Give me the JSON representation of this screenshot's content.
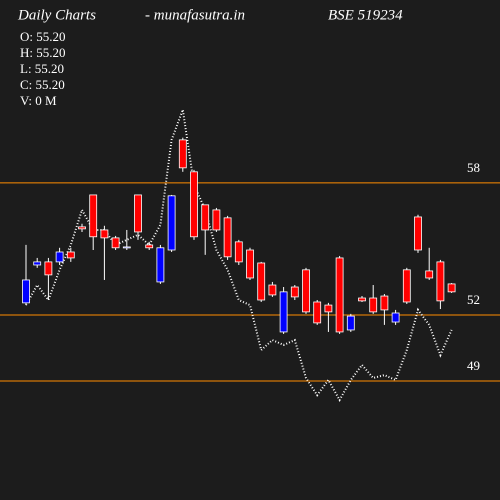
{
  "chart_data": {
    "type": "candlestick",
    "title_parts": [
      "Daily Charts",
      "- munafasutra.in",
      "BSE 519234"
    ],
    "info": [
      "O: 55.20",
      "H: 55.20",
      "L: 55.20",
      "C: 55.20",
      "V: 0  M"
    ],
    "ylim": [
      43.6,
      66.3
    ],
    "yticks": [
      49,
      52,
      58
    ],
    "up_color": "#0000ff",
    "down_color": "#ff0000",
    "level_color": "#ff8c00",
    "open": [
      52.55,
      54.27,
      54.41,
      54.41,
      54.86,
      56.0,
      57.45,
      55.86,
      55.5,
      55.09,
      57.45,
      55.18,
      53.5,
      54.95,
      59.95,
      58.5,
      57.0,
      56.77,
      56.41,
      55.32,
      54.95,
      54.36,
      53.36,
      51.23,
      53.27,
      54.05,
      52.59,
      52.45,
      54.59,
      51.32,
      52.77,
      52.77,
      52.86,
      51.68,
      54.05,
      56.45,
      54.0,
      54.41,
      53.41
    ],
    "high": [
      55.18,
      54.59,
      54.59,
      55.05,
      55.05,
      56.14,
      57.45,
      56.05,
      55.59,
      55.86,
      57.45,
      55.32,
      55.18,
      57.45,
      60.05,
      58.59,
      57.0,
      56.86,
      56.5,
      55.41,
      55.05,
      54.41,
      53.5,
      53.27,
      53.36,
      54.14,
      52.68,
      52.55,
      54.68,
      52.05,
      52.86,
      53.36,
      52.95,
      52.23,
      54.14,
      56.55,
      55.05,
      54.5,
      53.45
    ],
    "low": [
      52.45,
      54.14,
      52.68,
      54.27,
      54.41,
      55.77,
      54.95,
      53.59,
      54.95,
      54.95,
      55.41,
      54.95,
      53.41,
      54.86,
      58.5,
      55.41,
      54.73,
      55.77,
      54.5,
      54.27,
      53.59,
      52.59,
      52.82,
      51.14,
      52.68,
      52.05,
      51.55,
      51.23,
      51.14,
      51.23,
      52.59,
      52.05,
      51.55,
      51.55,
      52.5,
      54.82,
      53.59,
      52.27,
      53.0
    ],
    "close": [
      53.59,
      54.41,
      53.82,
      54.86,
      54.59,
      55.91,
      55.55,
      55.5,
      55.05,
      55.09,
      55.77,
      55.05,
      55.05,
      57.41,
      58.68,
      55.55,
      55.86,
      55.86,
      54.64,
      54.41,
      53.68,
      52.68,
      52.91,
      53.05,
      52.82,
      52.14,
      51.64,
      52.14,
      51.23,
      51.95,
      52.64,
      52.14,
      52.23,
      52.09,
      52.59,
      54.95,
      53.68,
      52.64,
      53.05
    ],
    "line": {
      "color": "#ffffff",
      "values": [
        52.45,
        53.36,
        52.68,
        54.05,
        55.18,
        56.77,
        55.86,
        55.86,
        55.18,
        55.41,
        55.64,
        55.18,
        56.09,
        59.95,
        61.32,
        57.91,
        56.77,
        54.95,
        54.05,
        52.68,
        52.45,
        50.41,
        50.86,
        50.64,
        50.86,
        49.14,
        48.36,
        49.05,
        48.14,
        49.05,
        49.73,
        49.14,
        49.27,
        49.05,
        50.41,
        52.23,
        51.55,
        50.18,
        51.32
      ]
    }
  }
}
